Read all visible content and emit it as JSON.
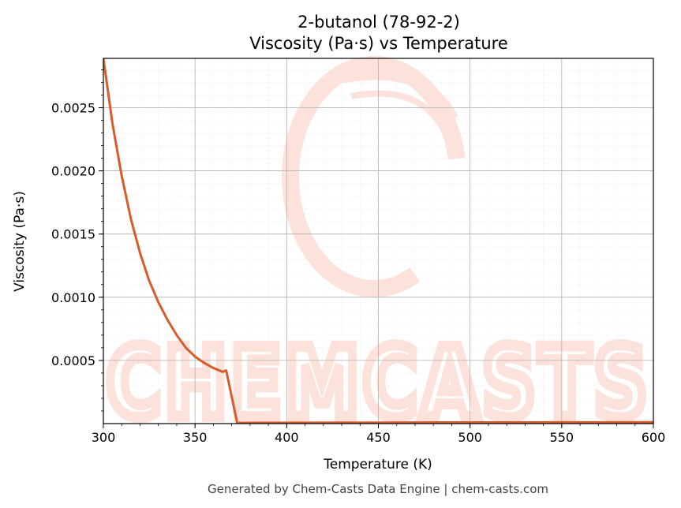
{
  "chart_data": {
    "type": "line",
    "title": "2-butanol (78-92-2)",
    "subtitle": "Viscosity (Pa·s) vs Temperature",
    "xlabel": "Temperature (K)",
    "ylabel": "Viscosity (Pa·s)",
    "xlim": [
      300,
      600
    ],
    "ylim": [
      0.0,
      0.00289
    ],
    "x_ticks": [
      300,
      350,
      400,
      450,
      500,
      550,
      600
    ],
    "x_tick_labels": [
      "300",
      "350",
      "400",
      "450",
      "500",
      "550",
      "600"
    ],
    "y_ticks": [
      0.0005,
      0.001,
      0.0015,
      0.002,
      0.0025
    ],
    "y_tick_labels": [
      "0.0005",
      "0.0010",
      "0.0015",
      "0.0020",
      "0.0025"
    ],
    "grid": true,
    "series": [
      {
        "color": "#d95a2b",
        "x": [
          300,
          305,
          310,
          315,
          320,
          325,
          330,
          335,
          340,
          345,
          350,
          355,
          360,
          365,
          367,
          373,
          380,
          400,
          450,
          500,
          550,
          600
        ],
        "y": [
          0.00289,
          0.00237,
          0.00196,
          0.00162,
          0.00135,
          0.00113,
          0.00096,
          0.00082,
          0.0007,
          0.0006,
          0.00053,
          0.00048,
          0.00044,
          0.00041,
          0.00042,
          5e-06,
          6e-06,
          7e-06,
          8e-06,
          9e-06,
          1e-05,
          1.1e-05
        ]
      }
    ]
  },
  "watermark": {
    "text": "CHEMCASTS",
    "color": "#fde2dc"
  },
  "footer": "Generated by Chem-Casts Data Engine | chem-casts.com"
}
